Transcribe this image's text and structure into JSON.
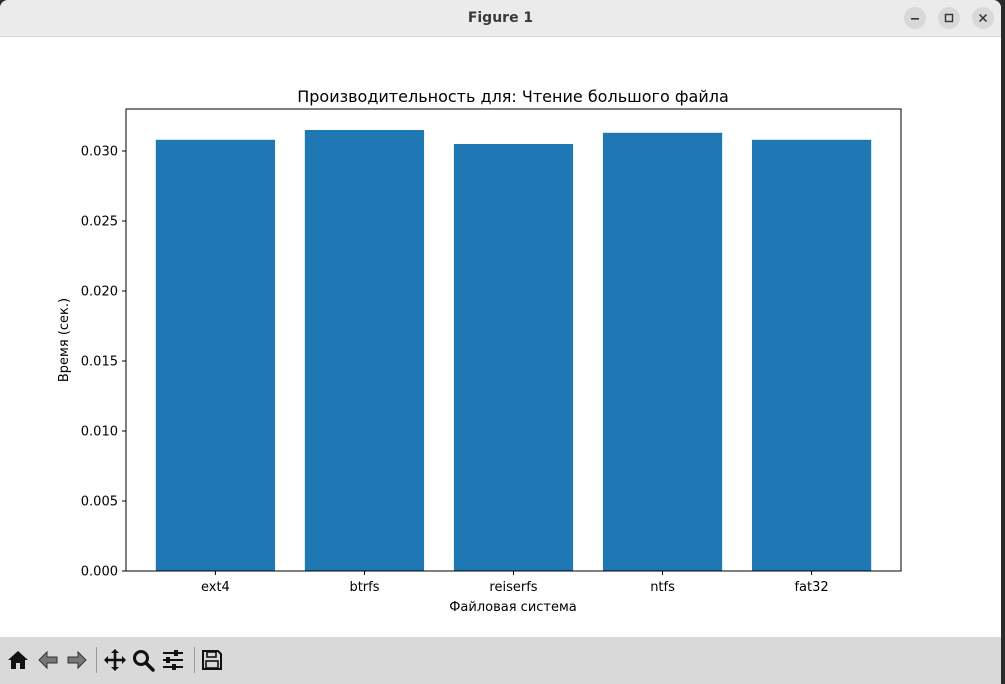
{
  "window": {
    "title": "Figure 1"
  },
  "chart_data": {
    "type": "bar",
    "title": "Производительность для: Чтение большого файла",
    "xlabel": "Файловая система",
    "ylabel": "Время (сек.)",
    "categories": [
      "ext4",
      "btrfs",
      "reiserfs",
      "ntfs",
      "fat32"
    ],
    "values": [
      0.0308,
      0.0315,
      0.0305,
      0.0313,
      0.0308
    ],
    "ylim": [
      0,
      0.033
    ],
    "yticks": [
      0.0,
      0.005,
      0.01,
      0.015,
      0.02,
      0.025,
      0.03
    ],
    "ytick_labels": [
      "0.000",
      "0.005",
      "0.010",
      "0.015",
      "0.020",
      "0.025",
      "0.030"
    ],
    "bar_color": "#1f77b4",
    "grid": false
  },
  "toolbar": {
    "icons": [
      "home-icon",
      "back-arrow-icon",
      "forward-arrow-icon",
      "pan-icon",
      "zoom-icon",
      "configure-subplots-icon",
      "save-icon"
    ]
  }
}
